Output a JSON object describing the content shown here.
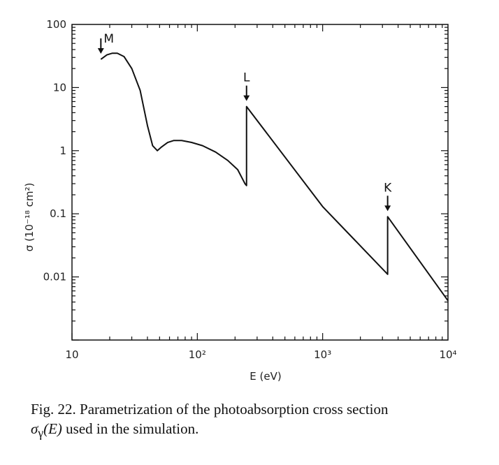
{
  "chart_data": {
    "type": "line",
    "xscale": "log",
    "yscale": "log",
    "xlim": [
      10,
      10000
    ],
    "ylim": [
      0.001,
      100
    ],
    "xlabel": "E (eV)",
    "ylabel": "σ (10⁻¹⁸ cm²)",
    "x_ticks": [
      {
        "value": 10,
        "label": "10"
      },
      {
        "value": 100,
        "label": "10²"
      },
      {
        "value": 1000,
        "label": "10³"
      },
      {
        "value": 10000,
        "label": "10⁴"
      }
    ],
    "y_ticks": [
      {
        "value": 100,
        "label": "100"
      },
      {
        "value": 10,
        "label": "10"
      },
      {
        "value": 1,
        "label": "1"
      },
      {
        "value": 0.1,
        "label": "0.1"
      },
      {
        "value": 0.01,
        "label": "0.01"
      }
    ],
    "series": [
      {
        "x": [
          17,
          19,
          21,
          23,
          26,
          30,
          35,
          40,
          44,
          48,
          52,
          58,
          65,
          75,
          90,
          110,
          140,
          175,
          210,
          240,
          247,
          247,
          1000,
          3300,
          3300,
          10000
        ],
        "y": [
          28,
          33,
          35,
          35,
          31,
          20,
          9,
          2.5,
          1.2,
          1.0,
          1.15,
          1.35,
          1.45,
          1.45,
          1.35,
          1.2,
          0.95,
          0.7,
          0.5,
          0.3,
          0.28,
          5.0,
          0.13,
          0.011,
          0.09,
          0.0042
        ]
      }
    ],
    "annotations": [
      {
        "text": "M",
        "x": 17,
        "y": 28
      },
      {
        "text": "L",
        "x": 247,
        "y": 5.0
      },
      {
        "text": "K",
        "x": 3300,
        "y": 0.09
      }
    ],
    "grid": false
  },
  "caption": {
    "prefix": "Fig. 22. Parametrization of the photoabsorption cross section",
    "symbol": "σ",
    "subscript": "γ",
    "arg": "(E)",
    "suffix": " used in the simulation."
  }
}
